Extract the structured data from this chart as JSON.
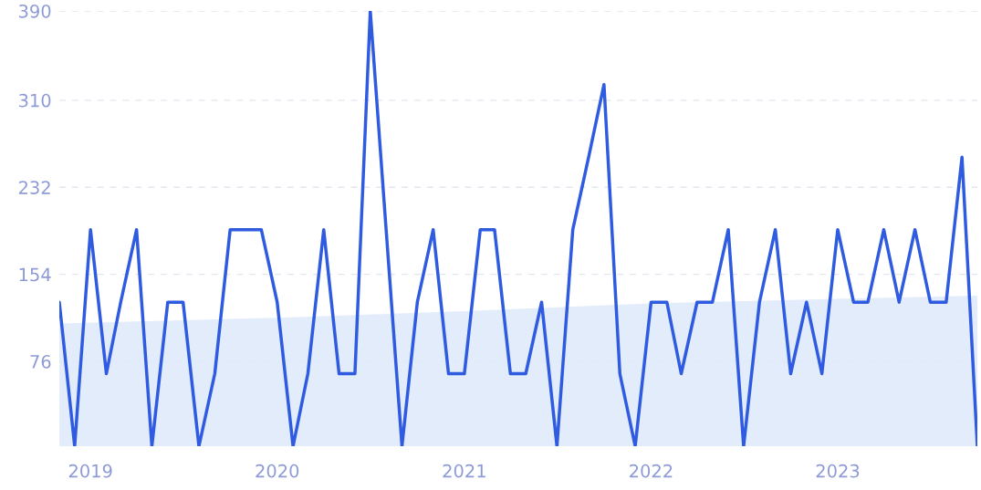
{
  "chart_data": {
    "type": "line",
    "x": [
      "2018-11",
      "2018-12",
      "2019-01",
      "2019-02",
      "2019-03",
      "2019-04",
      "2019-05",
      "2019-06",
      "2019-07",
      "2019-08",
      "2019-09",
      "2019-10",
      "2019-11",
      "2019-12",
      "2020-01",
      "2020-02",
      "2020-03",
      "2020-04",
      "2020-05",
      "2020-06",
      "2020-07",
      "2020-08",
      "2020-09",
      "2020-10",
      "2020-11",
      "2020-12",
      "2021-01",
      "2021-02",
      "2021-03",
      "2021-04",
      "2021-05",
      "2021-06",
      "2021-07",
      "2021-08",
      "2021-09",
      "2021-10",
      "2021-11",
      "2021-12",
      "2022-01",
      "2022-02",
      "2022-03",
      "2022-04",
      "2022-05",
      "2022-06",
      "2022-07",
      "2022-08",
      "2022-09",
      "2022-10",
      "2022-11",
      "2022-12",
      "2023-01",
      "2023-02",
      "2023-03",
      "2023-04",
      "2023-05",
      "2023-06",
      "2023-07",
      "2023-08",
      "2023-09",
      "2023-10"
    ],
    "series": [
      {
        "type": "area",
        "color": "#dfeafb",
        "x": [
          "2018-11",
          "2020-01",
          "2021-01",
          "2022-01",
          "2023-01",
          "2023-10"
        ],
        "values": [
          110,
          115,
          121,
          128,
          132,
          135
        ]
      },
      {
        "color": "#2f5be0",
        "values": [
          129,
          0,
          194,
          65,
          129,
          194,
          0,
          129,
          129,
          0,
          65,
          194,
          194,
          194,
          129,
          0,
          65,
          194,
          65,
          65,
          390,
          194,
          0,
          129,
          194,
          65,
          65,
          194,
          194,
          65,
          65,
          129,
          0,
          194,
          259,
          324,
          65,
          0,
          129,
          129,
          65,
          129,
          129,
          194,
          0,
          129,
          194,
          65,
          129,
          65,
          194,
          129,
          129,
          194,
          129,
          194,
          129,
          129,
          259,
          0
        ]
      }
    ],
    "xlim": [
      "2018-11",
      "2023-10"
    ],
    "xticks": [
      {
        "value": "2019-01",
        "label": "2019"
      },
      {
        "value": "2020-01",
        "label": "2020"
      },
      {
        "value": "2021-01",
        "label": "2021"
      },
      {
        "value": "2022-01",
        "label": "2022"
      },
      {
        "value": "2023-01",
        "label": "2023"
      }
    ],
    "ylim": [
      0,
      390
    ],
    "yticks": [
      76,
      154,
      232,
      310,
      390
    ],
    "grid": "y"
  }
}
